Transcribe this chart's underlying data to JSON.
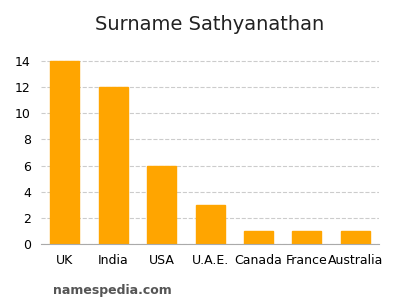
{
  "title": "Surname Sathyanathan",
  "categories": [
    "UK",
    "India",
    "USA",
    "U.A.E.",
    "Canada",
    "France",
    "Australia"
  ],
  "values": [
    14,
    12,
    6,
    3,
    1,
    1,
    1
  ],
  "bar_color": "#FFA500",
  "background_color": "#ffffff",
  "yticks": [
    0,
    2,
    4,
    6,
    8,
    10,
    12,
    14
  ],
  "ylim": [
    0,
    15.5
  ],
  "grid_color": "#cccccc",
  "title_fontsize": 14,
  "tick_fontsize": 9,
  "watermark": "namespedia.com",
  "watermark_fontsize": 9
}
